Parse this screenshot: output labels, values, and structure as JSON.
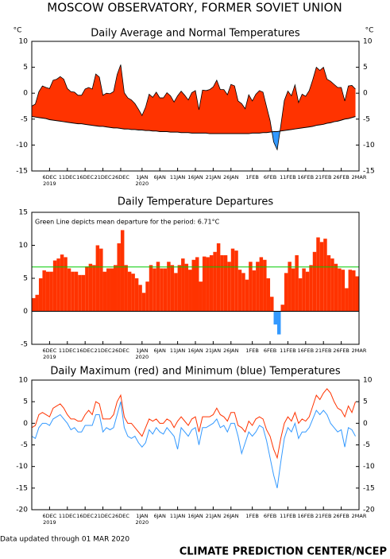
{
  "title": "MOSCOW OBSERVATORY, FORMER SOVIET UNION",
  "chart_data": [
    {
      "type": "area",
      "title": "Daily Average and Normal Temperatures",
      "y_unit": "°C",
      "xlim": [
        0,
        92
      ],
      "xticks": [
        {
          "value": 5,
          "label": "6DEC"
        },
        {
          "value": 10,
          "label": "11DEC"
        },
        {
          "value": 15,
          "label": "16DEC"
        },
        {
          "value": 20,
          "label": "21DEC"
        },
        {
          "value": 25,
          "label": "26DEC"
        },
        {
          "value": 31,
          "label": "1JAN"
        },
        {
          "value": 36,
          "label": "6JAN"
        },
        {
          "value": 41,
          "label": "11JAN"
        },
        {
          "value": 46,
          "label": "16JAN"
        },
        {
          "value": 51,
          "label": "21JAN"
        },
        {
          "value": 56,
          "label": "26JAN"
        },
        {
          "value": 62,
          "label": "1FEB"
        },
        {
          "value": 67,
          "label": "6FEB"
        },
        {
          "value": 72,
          "label": "11FEB"
        },
        {
          "value": 77,
          "label": "16FEB"
        },
        {
          "value": 82,
          "label": "21FEB"
        },
        {
          "value": 87,
          "label": "26FEB"
        },
        {
          "value": 92,
          "label": "2MAR"
        }
      ],
      "year_labels": [
        {
          "value": 5,
          "label": "2019"
        },
        {
          "value": 31,
          "label": "2020"
        }
      ],
      "ylim": [
        -15,
        10
      ],
      "yticks": [
        10,
        5,
        0,
        -5,
        -10,
        -15
      ],
      "color": "#ff3300",
      "below_color": "#3399ff",
      "normal_color": "#000000",
      "values": [
        -2.5,
        -2.1,
        0.3,
        1.4,
        1.1,
        0.9,
        2.5,
        2.7,
        3.2,
        2.7,
        0.9,
        0.3,
        0.2,
        -0.4,
        -0.4,
        0.8,
        1.1,
        0.8,
        3.7,
        3.1,
        -0.4,
        0,
        -0.1,
        0.3,
        3.6,
        5.5,
        0.1,
        -0.9,
        -1.3,
        -2,
        -3.1,
        -4.3,
        -2.7,
        -0.2,
        -0.8,
        0.2,
        -0.9,
        -0.9,
        0.1,
        -0.5,
        -1.7,
        -0.5,
        0.4,
        -0.4,
        -1.3,
        0.1,
        0.5,
        -3.2,
        0.6,
        0.5,
        0.7,
        1.2,
        2.5,
        0.7,
        0.7,
        -0.3,
        1.7,
        1.4,
        -1.5,
        -2,
        -3,
        -0.3,
        -1.5,
        -0.2,
        0.5,
        0.2,
        -2.6,
        -5.3,
        -9.4,
        -10.9,
        -6.3,
        -1.4,
        0.4,
        -0.5,
        1.6,
        -1.8,
        -0.2,
        -0.6,
        0.5,
        2.6,
        5,
        4.4,
        5,
        2.7,
        2.3,
        1.7,
        1.1,
        1.1,
        -1.5,
        1.4,
        1.5,
        0.8
      ],
      "normal": [
        -4.5,
        -4.6,
        -4.7,
        -4.8,
        -4.9,
        -5.1,
        -5.2,
        -5.3,
        -5.4,
        -5.5,
        -5.6,
        -5.7,
        -5.8,
        -5.9,
        -5.9,
        -6.0,
        -6.1,
        -6.2,
        -6.3,
        -6.4,
        -6.4,
        -6.5,
        -6.6,
        -6.7,
        -6.7,
        -6.8,
        -6.9,
        -6.9,
        -7.0,
        -7.0,
        -7.1,
        -7.1,
        -7.2,
        -7.2,
        -7.3,
        -7.3,
        -7.4,
        -7.4,
        -7.4,
        -7.5,
        -7.5,
        -7.5,
        -7.6,
        -7.6,
        -7.6,
        -7.7,
        -7.7,
        -7.7,
        -7.7,
        -7.7,
        -7.8,
        -7.8,
        -7.8,
        -7.8,
        -7.8,
        -7.8,
        -7.8,
        -7.8,
        -7.8,
        -7.8,
        -7.8,
        -7.8,
        -7.7,
        -7.7,
        -7.7,
        -7.6,
        -7.6,
        -7.5,
        -7.4,
        -7.4,
        -7.3,
        -7.2,
        -7.1,
        -7.0,
        -6.9,
        -6.8,
        -6.7,
        -6.6,
        -6.5,
        -6.4,
        -6.2,
        -6.1,
        -6.0,
        -5.8,
        -5.7,
        -5.5,
        -5.4,
        -5.2,
        -5.0,
        -4.9,
        -4.7,
        -4.5
      ]
    },
    {
      "type": "bar",
      "title": "Daily Temperature Departures",
      "annotation": "Green Line depicts mean departure for the period:  6.71°C",
      "mean": 6.71,
      "mean_color": "#00cc00",
      "xlim": [
        0,
        92
      ],
      "xticks": [
        {
          "value": 5,
          "label": "6DEC"
        },
        {
          "value": 10,
          "label": "11DEC"
        },
        {
          "value": 15,
          "label": "16DEC"
        },
        {
          "value": 20,
          "label": "21DEC"
        },
        {
          "value": 25,
          "label": "26DEC"
        },
        {
          "value": 31,
          "label": "1JAN"
        },
        {
          "value": 36,
          "label": "6JAN"
        },
        {
          "value": 41,
          "label": "11JAN"
        },
        {
          "value": 46,
          "label": "16JAN"
        },
        {
          "value": 51,
          "label": "21JAN"
        },
        {
          "value": 56,
          "label": "26JAN"
        },
        {
          "value": 62,
          "label": "1FEB"
        },
        {
          "value": 67,
          "label": "6FEB"
        },
        {
          "value": 72,
          "label": "11FEB"
        },
        {
          "value": 77,
          "label": "16FEB"
        },
        {
          "value": 82,
          "label": "21FEB"
        },
        {
          "value": 87,
          "label": "26FEB"
        },
        {
          "value": 92,
          "label": "2MAR"
        }
      ],
      "year_labels": [
        {
          "value": 5,
          "label": "2019"
        },
        {
          "value": 31,
          "label": "2020"
        }
      ],
      "ylim": [
        -5,
        15
      ],
      "yticks": [
        15,
        10,
        5,
        0,
        -5
      ],
      "color": "#ff3300",
      "negative_color": "#3399ff",
      "values": [
        2,
        2.5,
        5,
        6.2,
        6,
        6,
        7.7,
        8,
        8.6,
        8.2,
        6.5,
        6,
        6,
        5.5,
        5.5,
        6.8,
        7.2,
        7,
        10,
        9.5,
        6,
        6.5,
        6.5,
        7,
        10.3,
        12.3,
        7,
        6,
        5.7,
        5,
        4,
        2.8,
        4.5,
        7,
        6.5,
        7.5,
        6.5,
        6.5,
        7.5,
        7,
        5.8,
        7,
        8,
        7.2,
        6.3,
        7.8,
        8.2,
        4.5,
        8.3,
        8.2,
        8.5,
        9,
        10.3,
        8.5,
        8.5,
        7.5,
        9.5,
        9.2,
        6.3,
        5.8,
        4.8,
        7.5,
        6.2,
        7.5,
        8.2,
        7.8,
        5,
        2.2,
        -2,
        -3.5,
        1,
        5.8,
        7.5,
        6.5,
        8.5,
        5,
        6.5,
        6,
        7,
        9,
        11.2,
        10.5,
        11,
        8.5,
        8,
        7.2,
        6.5,
        6.3,
        3.5,
        6.3,
        6.2,
        5.3
      ]
    },
    {
      "type": "line",
      "title": "Daily Maximum (red) and Minimum (blue) Temperatures",
      "xlim": [
        0,
        92
      ],
      "xticks": [
        {
          "value": 5,
          "label": "6DEC"
        },
        {
          "value": 10,
          "label": "11DEC"
        },
        {
          "value": 15,
          "label": "16DEC"
        },
        {
          "value": 20,
          "label": "21DEC"
        },
        {
          "value": 25,
          "label": "26DEC"
        },
        {
          "value": 31,
          "label": "1JAN"
        },
        {
          "value": 36,
          "label": "6JAN"
        },
        {
          "value": 41,
          "label": "11JAN"
        },
        {
          "value": 46,
          "label": "16JAN"
        },
        {
          "value": 51,
          "label": "21JAN"
        },
        {
          "value": 56,
          "label": "26JAN"
        },
        {
          "value": 62,
          "label": "1FEB"
        },
        {
          "value": 67,
          "label": "6FEB"
        },
        {
          "value": 72,
          "label": "11FEB"
        },
        {
          "value": 77,
          "label": "16FEB"
        },
        {
          "value": 82,
          "label": "21FEB"
        },
        {
          "value": 87,
          "label": "26FEB"
        },
        {
          "value": 92,
          "label": "2MAR"
        }
      ],
      "year_labels": [
        {
          "value": 5,
          "label": "2019"
        },
        {
          "value": 31,
          "label": "2020"
        }
      ],
      "ylim": [
        -20,
        10
      ],
      "yticks": [
        10,
        5,
        0,
        -5,
        -10,
        -15,
        -20
      ],
      "series": [
        {
          "color": "#ff3300",
          "values": [
            -1,
            -0.5,
            2,
            2.5,
            2,
            1.5,
            3.5,
            4,
            4.5,
            3.5,
            2,
            1,
            1,
            0.5,
            0.5,
            2,
            3,
            2,
            5,
            4.5,
            1,
            1,
            1,
            2,
            5,
            6.5,
            1.5,
            0,
            0,
            -1,
            -2,
            -3,
            -1,
            1,
            0.5,
            1,
            0,
            0,
            1,
            0.5,
            -1,
            0.5,
            1.5,
            0.5,
            -0.5,
            1,
            1.5,
            -2,
            1.5,
            1.5,
            1.5,
            2,
            3.5,
            2,
            1.5,
            0.5,
            2.5,
            2.5,
            -0.5,
            -1,
            -2,
            0.5,
            -0.5,
            1,
            1.5,
            1,
            -1.5,
            -3,
            -6,
            -8,
            -3.5,
            0,
            1.5,
            0.5,
            2.5,
            0,
            1,
            0.5,
            1.5,
            4,
            6.5,
            5.5,
            7,
            8,
            7,
            5,
            3.5,
            3,
            1.5,
            4,
            2.5,
            5
          ]
        },
        {
          "color": "#3399ff",
          "values": [
            -3,
            -3.5,
            -1,
            0,
            0,
            -0.5,
            1,
            1.5,
            2,
            1,
            0,
            -1.5,
            -1,
            -2,
            -2,
            -0.5,
            -0.5,
            -0.5,
            2,
            2,
            -2,
            -1,
            -1.5,
            -1,
            2,
            5,
            -1,
            -3,
            -3.5,
            -3,
            -4.5,
            -5.5,
            -4.5,
            -1.5,
            -2.5,
            -1,
            -2,
            -2.5,
            -1,
            -2,
            -3,
            -6,
            -1,
            -2,
            -3,
            -1.5,
            -1,
            -5,
            -1,
            -1,
            -0.5,
            0,
            1,
            -1,
            -0.5,
            -2,
            0,
            0,
            -3,
            -7,
            -4.5,
            -2,
            -3,
            -2,
            -0.5,
            -1,
            -4,
            -8,
            -12,
            -15,
            -9,
            -3.5,
            -1,
            -2,
            0,
            -3.5,
            -2,
            -2,
            -1,
            1,
            3,
            2,
            3,
            2,
            0,
            -1,
            -2,
            -1.5,
            -5.5,
            -1,
            -1.5,
            -3
          ]
        }
      ]
    }
  ],
  "footer": {
    "updated": "Data updated through 01 MAR 2020",
    "credit": "CLIMATE PREDICTION CENTER/NCEP"
  }
}
